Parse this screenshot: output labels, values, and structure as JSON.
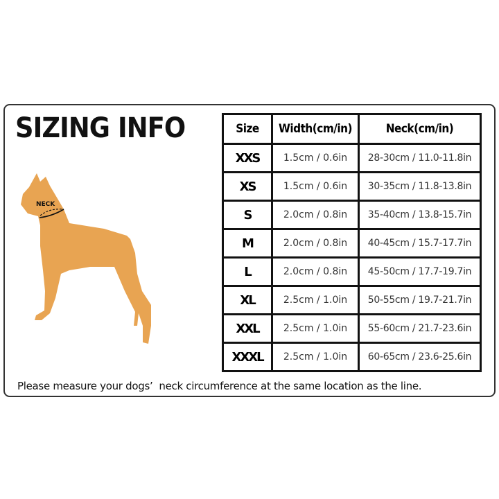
{
  "title": "SIZING INFO",
  "dog_label": "NECK",
  "dog_color": "#E8A452",
  "table": {
    "headers": [
      "Size",
      "Width(cm/in)",
      "Neck(cm/in)"
    ],
    "rows": [
      {
        "size": "XXS",
        "width": "1.5cm / 0.6in",
        "neck": "28-30cm / 11.0-11.8in"
      },
      {
        "size": "XS",
        "width": "1.5cm / 0.6in",
        "neck": "30-35cm / 11.8-13.8in"
      },
      {
        "size": "S",
        "width": "2.0cm / 0.8in",
        "neck": "35-40cm / 13.8-15.7in"
      },
      {
        "size": "M",
        "width": "2.0cm / 0.8in",
        "neck": "40-45cm / 15.7-17.7in"
      },
      {
        "size": "L",
        "width": "2.0cm / 0.8in",
        "neck": "45-50cm / 17.7-19.7in"
      },
      {
        "size": "XL",
        "width": "2.5cm / 1.0in",
        "neck": "50-55cm / 19.7-21.7in"
      },
      {
        "size": "XXL",
        "width": "2.5cm / 1.0in",
        "neck": "55-60cm / 21.7-23.6in"
      },
      {
        "size": "XXXL",
        "width": "2.5cm / 1.0in",
        "neck": "60-65cm / 23.6-25.6in"
      }
    ]
  },
  "note": "Please measure your dogs’  neck circumference at the same location as the line."
}
